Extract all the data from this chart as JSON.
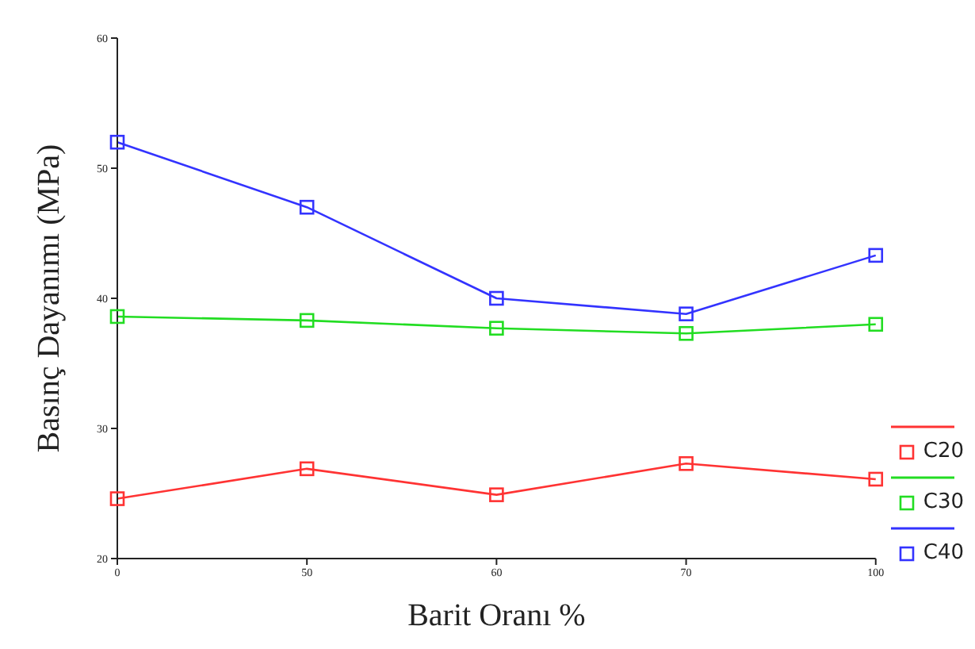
{
  "chart_data": {
    "type": "line",
    "xlabel": "Barit Oranı %",
    "ylabel": "Basınç Dayanımı (MPa)",
    "categories": [
      "0",
      "50",
      "60",
      "70",
      "100"
    ],
    "series": [
      {
        "name": "C20",
        "color": "#ff3333",
        "values": [
          24.6,
          26.9,
          24.9,
          27.3,
          26.1
        ]
      },
      {
        "name": "C30",
        "color": "#22dd22",
        "values": [
          38.6,
          38.3,
          37.7,
          37.3,
          38.0
        ]
      },
      {
        "name": "C40",
        "color": "#3333ff",
        "values": [
          52.0,
          47.0,
          40.0,
          38.8,
          43.3
        ]
      }
    ],
    "ylim": [
      20,
      60
    ],
    "yticks": [
      20,
      30,
      40,
      50,
      60
    ],
    "grid": false,
    "legend": "right",
    "marker": "square",
    "line_style": "solid"
  }
}
